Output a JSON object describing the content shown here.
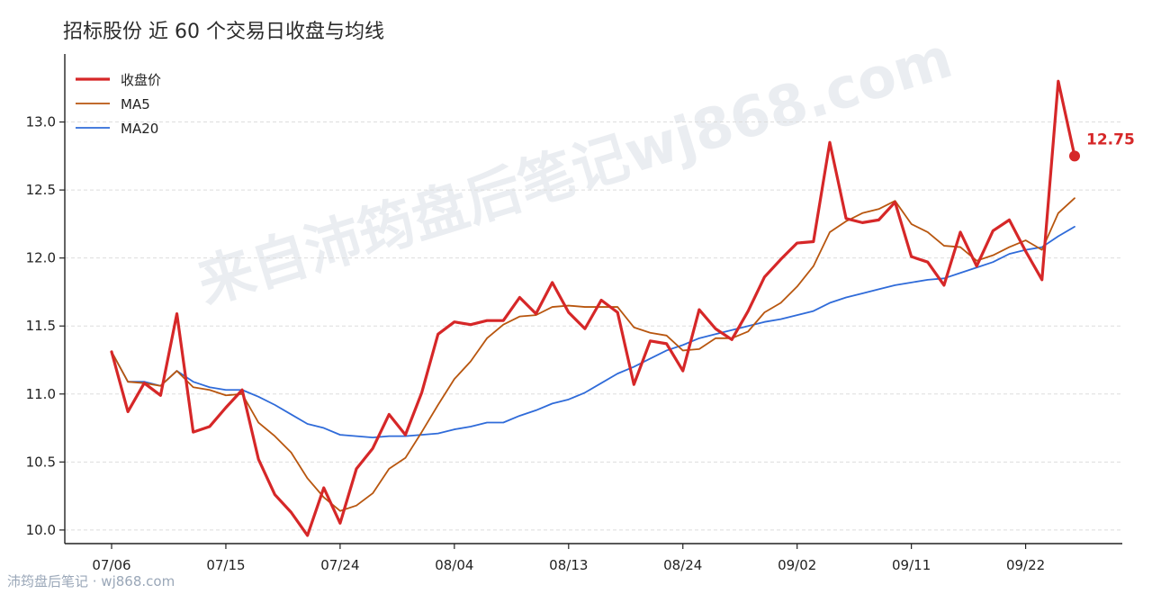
{
  "title": "招标股份 近 60 个交易日收盘与均线",
  "footer": "沛筠盘后笔记 · wj868.com",
  "watermark": "来自沛筠盘后笔记wj868.com",
  "colors": {
    "close": "#d62728",
    "ma5": "#b8560f",
    "ma20": "#2f6bd9",
    "grid": "#dddddd",
    "axis": "#222222"
  },
  "chart_data": {
    "type": "line",
    "ylim": [
      9.9,
      13.5
    ],
    "y_ticks": [
      10.0,
      10.5,
      11.0,
      11.5,
      12.0,
      12.5,
      13.0
    ],
    "x_tick_labels": [
      "07/06",
      "07/15",
      "07/24",
      "08/04",
      "08/13",
      "08/24",
      "09/02",
      "09/11",
      "09/22"
    ],
    "x_tick_index": [
      0,
      7,
      14,
      21,
      28,
      35,
      42,
      49,
      56
    ],
    "legend_position": "top-left",
    "grid": "horizontal dashed",
    "last_value_label": "12.75",
    "series": [
      {
        "name": "收盘价",
        "key": "close",
        "values": [
          11.31,
          10.87,
          11.08,
          10.99,
          11.59,
          10.72,
          10.76,
          10.9,
          11.03,
          10.52,
          10.26,
          10.13,
          9.96,
          10.31,
          10.05,
          10.45,
          10.6,
          10.85,
          10.7,
          11.01,
          11.44,
          11.53,
          11.51,
          11.54,
          11.54,
          11.71,
          11.59,
          11.82,
          11.6,
          11.48,
          11.69,
          11.6,
          11.07,
          11.39,
          11.37,
          11.17,
          11.62,
          11.48,
          11.4,
          11.61,
          11.86,
          11.99,
          12.11,
          12.12,
          12.85,
          12.29,
          12.26,
          12.28,
          12.41,
          12.01,
          11.97,
          11.8,
          12.19,
          11.94,
          12.2,
          12.28,
          12.05,
          11.84,
          13.3,
          12.75
        ]
      },
      {
        "name": "MA5",
        "key": "ma5",
        "values": [
          11.31,
          11.09,
          11.08,
          11.06,
          11.17,
          11.05,
          11.03,
          10.99,
          11.0,
          10.79,
          10.69,
          10.57,
          10.38,
          10.24,
          10.14,
          10.18,
          10.27,
          10.45,
          10.53,
          10.72,
          10.92,
          11.11,
          11.24,
          11.41,
          11.51,
          11.57,
          11.58,
          11.64,
          11.65,
          11.64,
          11.64,
          11.64,
          11.49,
          11.45,
          11.43,
          11.32,
          11.33,
          11.41,
          11.41,
          11.46,
          11.6,
          11.67,
          11.79,
          11.94,
          12.19,
          12.27,
          12.33,
          12.36,
          12.42,
          12.25,
          12.19,
          12.09,
          12.08,
          11.98,
          12.02,
          12.08,
          12.13,
          12.06,
          12.33,
          12.44
        ]
      },
      {
        "name": "MA20",
        "key": "ma20",
        "values": [
          11.31,
          11.09,
          11.09,
          11.06,
          11.17,
          11.09,
          11.05,
          11.03,
          11.03,
          10.98,
          10.92,
          10.85,
          10.78,
          10.75,
          10.7,
          10.69,
          10.68,
          10.69,
          10.69,
          10.7,
          10.71,
          10.74,
          10.76,
          10.79,
          10.79,
          10.84,
          10.88,
          10.93,
          10.96,
          11.01,
          11.08,
          11.15,
          11.2,
          11.26,
          11.32,
          11.36,
          11.41,
          11.44,
          11.47,
          11.5,
          11.53,
          11.55,
          11.58,
          11.61,
          11.67,
          11.71,
          11.74,
          11.77,
          11.8,
          11.82,
          11.84,
          11.85,
          11.89,
          11.93,
          11.97,
          12.03,
          12.06,
          12.08,
          12.16,
          12.23
        ]
      }
    ]
  }
}
